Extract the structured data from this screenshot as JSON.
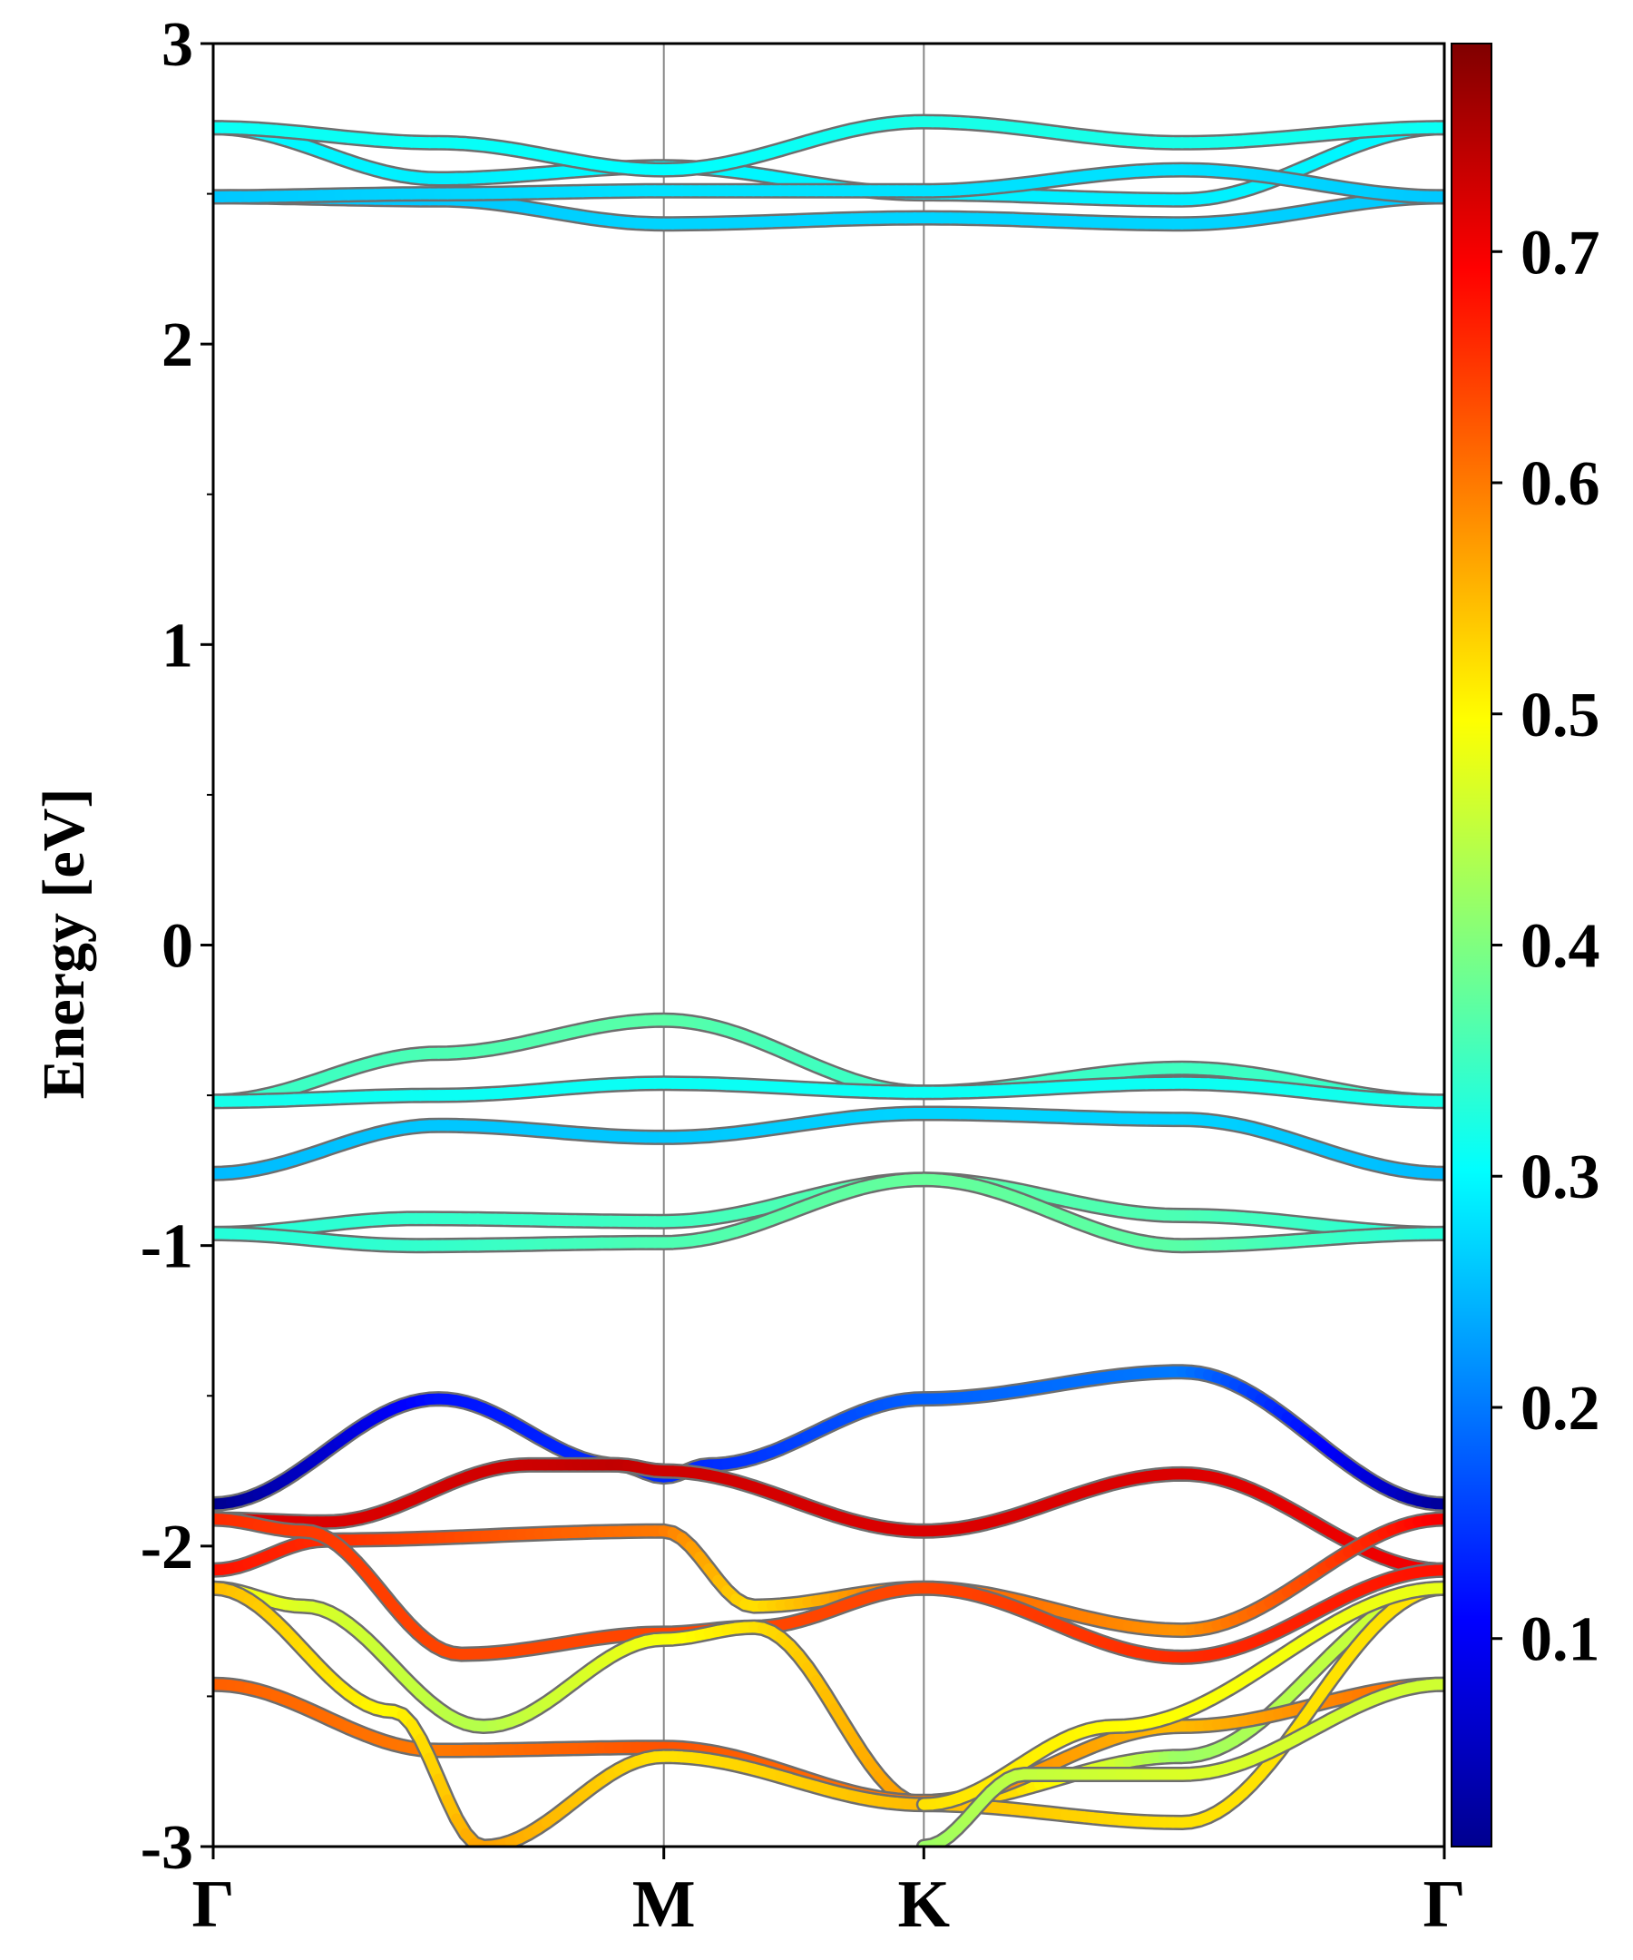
{
  "chart_data": {
    "type": "line",
    "title": "",
    "xlabel": "",
    "ylabel": "Energy [eV]",
    "ylim": [
      -3,
      3
    ],
    "y_ticks": [
      "3",
      "2",
      "1",
      "0",
      "-1",
      "-2",
      "-3"
    ],
    "y_tick_values": [
      3,
      2,
      1,
      0,
      -1,
      -2,
      -3
    ],
    "y_minor_step": 0.5,
    "kpath": {
      "labels": [
        "Γ",
        "M",
        "K",
        "Γ"
      ],
      "positions": [
        0,
        1,
        1.577,
        2.732
      ]
    },
    "grid": "vertical lines at high-symmetry points",
    "colormap": "jet",
    "colorbar": {
      "range": [
        0.01,
        0.79
      ],
      "tick_labels": [
        "0.1",
        "0.2",
        "0.3",
        "0.4",
        "0.5",
        "0.6",
        "0.7"
      ],
      "tick_values": [
        0.1,
        0.2,
        0.3,
        0.4,
        0.5,
        0.6,
        0.7
      ]
    },
    "series": [
      {
        "values": [
          [
            0,
            2.72
          ],
          [
            0.5,
            2.55
          ],
          [
            1,
            2.59
          ],
          [
            1.577,
            2.5
          ],
          [
            2.15,
            2.48
          ],
          [
            2.732,
            2.72
          ]
        ],
        "weights": [
          0.3,
          0.29,
          0.3,
          0.29,
          0.29,
          0.3
        ]
      },
      {
        "values": [
          [
            0,
            2.72
          ],
          [
            0.5,
            2.67
          ],
          [
            1,
            2.58
          ],
          [
            1.577,
            2.74
          ],
          [
            2.15,
            2.67
          ],
          [
            2.732,
            2.72
          ]
        ],
        "weights": [
          0.31,
          0.31,
          0.3,
          0.32,
          0.32,
          0.31
        ]
      },
      {
        "values": [
          [
            0,
            2.49
          ],
          [
            0.5,
            2.48
          ],
          [
            1,
            2.4
          ],
          [
            1.577,
            2.42
          ],
          [
            2.15,
            2.4
          ],
          [
            2.732,
            2.49
          ]
        ],
        "weights": [
          0.26,
          0.26,
          0.27,
          0.27,
          0.27,
          0.26
        ]
      },
      {
        "values": [
          [
            0,
            2.49
          ],
          [
            0.5,
            2.5
          ],
          [
            1,
            2.51
          ],
          [
            1.577,
            2.51
          ],
          [
            2.15,
            2.58
          ],
          [
            2.732,
            2.49
          ]
        ],
        "weights": [
          0.26,
          0.27,
          0.28,
          0.28,
          0.28,
          0.26
        ]
      },
      {
        "values": [
          [
            0,
            -0.52
          ],
          [
            0.5,
            -0.36
          ],
          [
            1,
            -0.25
          ],
          [
            1.577,
            -0.49
          ],
          [
            2.15,
            -0.41
          ],
          [
            2.732,
            -0.52
          ]
        ],
        "weights": [
          0.34,
          0.36,
          0.37,
          0.34,
          0.35,
          0.34
        ]
      },
      {
        "values": [
          [
            0,
            -0.52
          ],
          [
            0.5,
            -0.5
          ],
          [
            1,
            -0.46
          ],
          [
            1.577,
            -0.49
          ],
          [
            2.15,
            -0.46
          ],
          [
            2.732,
            -0.52
          ]
        ],
        "weights": [
          0.32,
          0.31,
          0.31,
          0.31,
          0.31,
          0.32
        ]
      },
      {
        "values": [
          [
            0,
            -0.76
          ],
          [
            0.5,
            -0.6
          ],
          [
            1,
            -0.64
          ],
          [
            1.577,
            -0.56
          ],
          [
            2.15,
            -0.58
          ],
          [
            2.732,
            -0.76
          ]
        ],
        "weights": [
          0.25,
          0.26,
          0.26,
          0.27,
          0.27,
          0.25
        ]
      },
      {
        "values": [
          [
            0,
            -0.96
          ],
          [
            0.45,
            -0.91
          ],
          [
            1,
            -0.92
          ],
          [
            1.577,
            -0.78
          ],
          [
            2.15,
            -0.9
          ],
          [
            2.732,
            -0.96
          ]
        ],
        "weights": [
          0.33,
          0.34,
          0.35,
          0.37,
          0.36,
          0.33
        ]
      },
      {
        "values": [
          [
            0,
            -0.96
          ],
          [
            0.45,
            -1.0
          ],
          [
            1,
            -0.99
          ],
          [
            1.577,
            -0.78
          ],
          [
            2.15,
            -1.0
          ],
          [
            2.732,
            -0.96
          ]
        ],
        "weights": [
          0.33,
          0.34,
          0.36,
          0.38,
          0.37,
          0.33
        ]
      },
      {
        "values": [
          [
            0,
            -1.86
          ],
          [
            0.5,
            -1.51
          ],
          [
            0.9,
            -1.73
          ],
          [
            1,
            -1.77
          ],
          [
            1.1,
            -1.73
          ],
          [
            1.577,
            -1.51
          ],
          [
            2.15,
            -1.42
          ],
          [
            2.732,
            -1.86
          ]
        ],
        "weights": [
          0.02,
          0.12,
          0.14,
          0.14,
          0.14,
          0.18,
          0.2,
          0.03
        ]
      },
      {
        "values": [
          [
            0,
            -1.91
          ],
          [
            0.25,
            -1.92
          ],
          [
            0.7,
            -1.73
          ],
          [
            0.9,
            -1.73
          ],
          [
            1,
            -1.75
          ],
          [
            1.577,
            -1.95
          ],
          [
            2.15,
            -1.76
          ],
          [
            2.732,
            -2.08
          ]
        ],
        "weights": [
          0.72,
          0.72,
          0.73,
          0.74,
          0.73,
          0.72,
          0.72,
          0.7
        ]
      },
      {
        "values": [
          [
            0,
            -2.08
          ],
          [
            0.25,
            -1.98
          ],
          [
            1,
            -1.95
          ],
          [
            1.2,
            -2.2
          ],
          [
            1.577,
            -2.14
          ],
          [
            2.15,
            -2.28
          ],
          [
            2.732,
            -1.91
          ]
        ],
        "weights": [
          0.68,
          0.66,
          0.6,
          0.52,
          0.62,
          0.58,
          0.7
        ]
      },
      {
        "values": [
          [
            0,
            -1.91
          ],
          [
            0.2,
            -1.95
          ],
          [
            0.55,
            -2.36
          ],
          [
            1,
            -2.29
          ],
          [
            1.2,
            -2.27
          ],
          [
            1.577,
            -2.14
          ],
          [
            2.15,
            -2.37
          ],
          [
            2.732,
            -2.08
          ]
        ],
        "weights": [
          0.66,
          0.65,
          0.64,
          0.64,
          0.64,
          0.64,
          0.66,
          0.68
        ]
      },
      {
        "values": [
          [
            0,
            -2.14
          ],
          [
            0.2,
            -2.2
          ],
          [
            0.6,
            -2.6
          ],
          [
            1,
            -2.31
          ],
          [
            1.2,
            -2.27
          ],
          [
            1.577,
            -2.86
          ],
          [
            2.15,
            -2.7
          ],
          [
            2.732,
            -2.14
          ]
        ],
        "weights": [
          0.5,
          0.47,
          0.44,
          0.49,
          0.52,
          0.58,
          0.42,
          0.47
        ]
      },
      {
        "values": [
          [
            0,
            -2.46
          ],
          [
            0.5,
            -2.68
          ],
          [
            1,
            -2.67
          ],
          [
            1.577,
            -2.85
          ],
          [
            2.15,
            -2.6
          ],
          [
            2.732,
            -2.46
          ]
        ],
        "weights": [
          0.62,
          0.6,
          0.63,
          0.6,
          0.55,
          0.62
        ]
      },
      {
        "values": [
          [
            0,
            -2.14
          ],
          [
            0.4,
            -2.55
          ],
          [
            0.6,
            -3.0
          ],
          [
            1,
            -2.7
          ],
          [
            1.577,
            -2.86
          ],
          [
            2.15,
            -2.92
          ],
          [
            2.732,
            -2.14
          ]
        ],
        "weights": [
          0.55,
          0.5,
          0.57,
          0.52,
          0.55,
          0.52,
          0.52
        ]
      },
      {
        "values": [
          [
            1.577,
            -2.86
          ],
          [
            2.0,
            -2.6
          ],
          [
            2.732,
            -2.14
          ]
        ],
        "weights": [
          0.52,
          0.5,
          0.48
        ]
      },
      {
        "values": [
          [
            1.577,
            -3.0
          ],
          [
            1.8,
            -2.76
          ],
          [
            2.15,
            -2.76
          ],
          [
            2.732,
            -2.46
          ]
        ],
        "weights": [
          0.42,
          0.45,
          0.47,
          0.46
        ]
      }
    ]
  }
}
